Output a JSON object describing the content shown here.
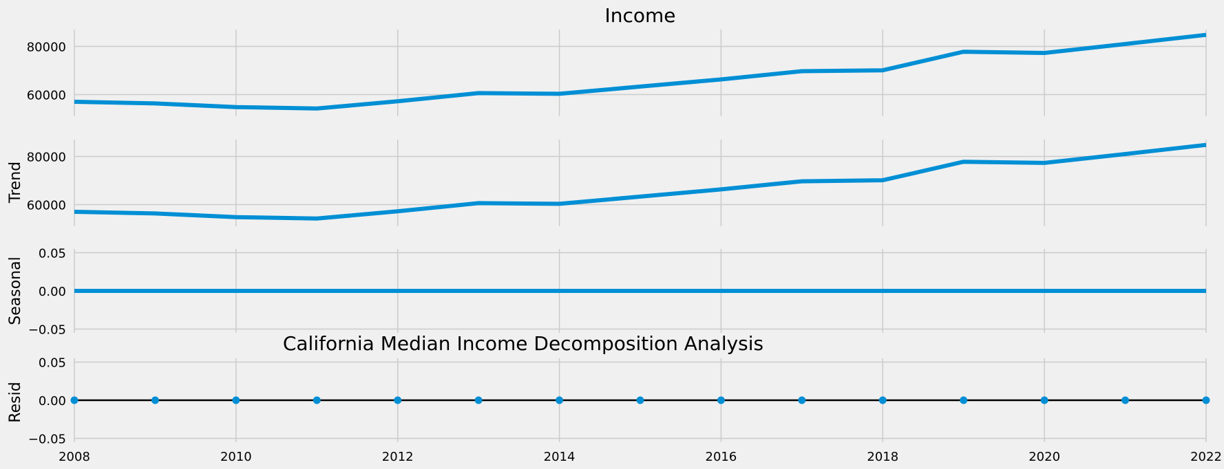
{
  "chart_data": [
    {
      "type": "line",
      "title": "Income",
      "ylabel": "",
      "x": [
        2008,
        2009,
        2010,
        2011,
        2012,
        2013,
        2014,
        2015,
        2016,
        2017,
        2018,
        2019,
        2020,
        2021,
        2022
      ],
      "values": [
        57000,
        56300,
        54800,
        54200,
        57200,
        60600,
        60300,
        63300,
        66300,
        69700,
        70100,
        77800,
        77300,
        81000,
        84800
      ],
      "ylim": [
        51000,
        87000
      ],
      "yticks": [
        60000,
        80000
      ],
      "ytick_labels": [
        "60000",
        "80000"
      ],
      "grid": true
    },
    {
      "type": "line",
      "title": "",
      "ylabel": "Trend",
      "x": [
        2008,
        2009,
        2010,
        2011,
        2012,
        2013,
        2014,
        2015,
        2016,
        2017,
        2018,
        2019,
        2020,
        2021,
        2022
      ],
      "values": [
        57000,
        56300,
        54800,
        54200,
        57200,
        60600,
        60300,
        63300,
        66300,
        69700,
        70100,
        77800,
        77300,
        81000,
        84800
      ],
      "ylim": [
        51000,
        87000
      ],
      "yticks": [
        60000,
        80000
      ],
      "ytick_labels": [
        "60000",
        "80000"
      ],
      "grid": true
    },
    {
      "type": "line",
      "title": "",
      "ylabel": "Seasonal",
      "x": [
        2008,
        2009,
        2010,
        2011,
        2012,
        2013,
        2014,
        2015,
        2016,
        2017,
        2018,
        2019,
        2020,
        2021,
        2022
      ],
      "values": [
        0,
        0,
        0,
        0,
        0,
        0,
        0,
        0,
        0,
        0,
        0,
        0,
        0,
        0,
        0
      ],
      "ylim": [
        -0.055,
        0.055
      ],
      "yticks": [
        -0.05,
        0,
        0.05
      ],
      "ytick_labels": [
        "−0.05",
        "0.00",
        "0.05"
      ],
      "grid": true
    },
    {
      "type": "scatter",
      "title": "California Median Income Decomposition Analysis",
      "ylabel": "Resid",
      "x": [
        2008,
        2009,
        2010,
        2011,
        2012,
        2013,
        2014,
        2015,
        2016,
        2017,
        2018,
        2019,
        2020,
        2021,
        2022
      ],
      "values": [
        0,
        0,
        0,
        0,
        0,
        0,
        0,
        0,
        0,
        0,
        0,
        0,
        0,
        0,
        0
      ],
      "ylim": [
        -0.055,
        0.055
      ],
      "yticks": [
        -0.05,
        0,
        0.05
      ],
      "ytick_labels": [
        "−0.05",
        "0.00",
        "0.05"
      ],
      "zero_line": true,
      "grid": true
    }
  ],
  "shared_x": {
    "xlim": [
      2008,
      2022
    ],
    "ticks": [
      2008,
      2010,
      2012,
      2014,
      2016,
      2018,
      2020,
      2022
    ],
    "tick_labels": [
      "2008",
      "2010",
      "2012",
      "2014",
      "2016",
      "2018",
      "2020",
      "2022"
    ]
  },
  "colors": {
    "background": "#f0f0f0",
    "series": "#008fd5",
    "grid": "#cbcbcb",
    "zero_line": "#000000"
  }
}
